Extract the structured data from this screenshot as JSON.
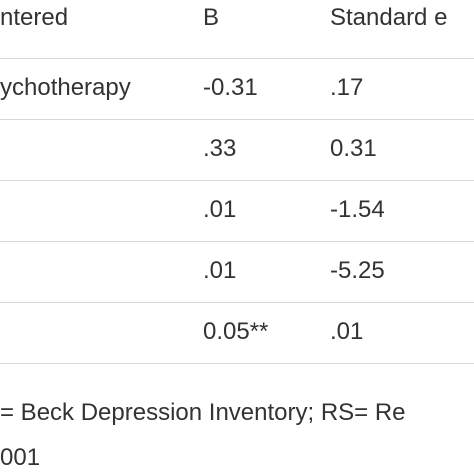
{
  "table": {
    "header": [
      "ntered",
      "B",
      "Standard e"
    ],
    "rows": [
      {
        "label": "ychotherapy",
        "cells": [
          "-0.31",
          ".17"
        ]
      },
      {
        "cells": [
          ".33",
          "0.31"
        ]
      },
      {
        "cells": [
          ".01",
          "-1.54"
        ]
      },
      {
        "cells": [
          ".01",
          "-5.25"
        ]
      },
      {
        "cells": [
          "0.05**",
          ".01"
        ]
      }
    ]
  },
  "footnote": [
    "= Beck Depression Inventory; RS= Re",
    "001"
  ]
}
